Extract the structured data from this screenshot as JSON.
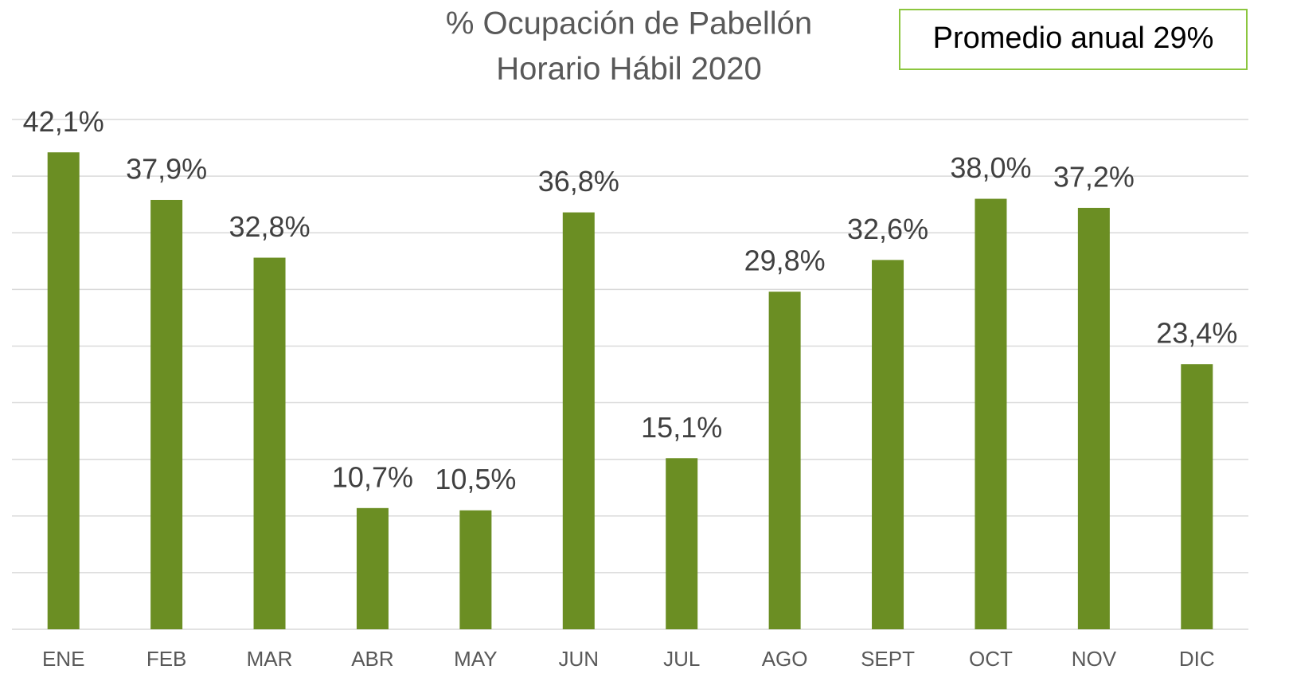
{
  "chart_data": {
    "type": "bar",
    "title": [
      "% Ocupación de Pabellón",
      "Horario Hábil 2020"
    ],
    "annotation": "Promedio anual 29%",
    "categories": [
      "ENE",
      "FEB",
      "MAR",
      "ABR",
      "MAY",
      "JUN",
      "JUL",
      "AGO",
      "SEPT",
      "OCT",
      "NOV",
      "DIC"
    ],
    "values": [
      42.1,
      37.9,
      32.8,
      10.7,
      10.5,
      36.8,
      15.1,
      29.8,
      32.6,
      38.0,
      37.2,
      23.4
    ],
    "value_labels": [
      "42,1%",
      "37,9%",
      "32,8%",
      "10,7%",
      "10,5%",
      "36,8%",
      "15,1%",
      "29,8%",
      "32,6%",
      "38,0%",
      "37,2%",
      "23,4%"
    ],
    "color": "#6b8e23",
    "ylim": [
      0,
      45
    ],
    "yticks": [
      0,
      5,
      10,
      15,
      20,
      25,
      30,
      35,
      40,
      45
    ],
    "grid": true
  }
}
